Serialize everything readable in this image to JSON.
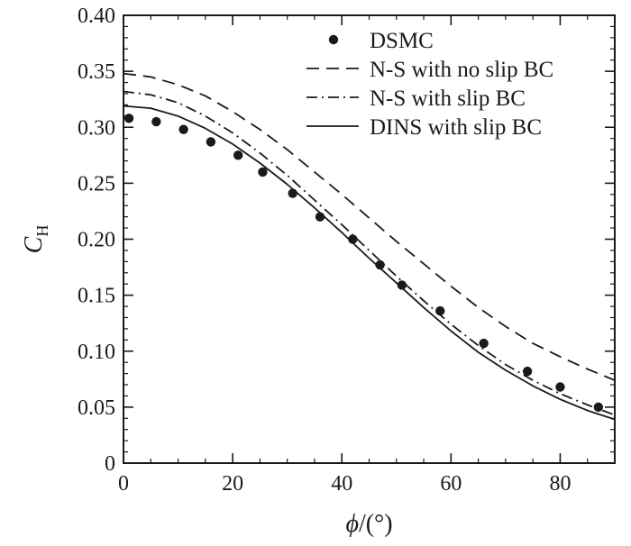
{
  "chart_data": {
    "type": "line",
    "title": "",
    "xlabel": {
      "symbol": "ϕ",
      "unit": "/(°)"
    },
    "ylabel": {
      "symbol": "C",
      "subscript": "H"
    },
    "xlim": [
      0,
      90
    ],
    "ylim": [
      0,
      0.4
    ],
    "xticks": [
      0,
      20,
      40,
      60,
      80
    ],
    "xtick_labels": [
      "0",
      "20",
      "40",
      "60",
      "80"
    ],
    "yticks": [
      0,
      0.05,
      0.1,
      0.15,
      0.2,
      0.25,
      0.3,
      0.35,
      0.4
    ],
    "ytick_labels": [
      "0",
      "0.05",
      "0.10",
      "0.15",
      "0.20",
      "0.25",
      "0.30",
      "0.35",
      "0.40"
    ],
    "grid": false,
    "legend_position": "top-right",
    "series": [
      {
        "name": "DSMC",
        "style": "markers",
        "color": "#1a1a1a",
        "points": [
          [
            1,
            0.308
          ],
          [
            6,
            0.305
          ],
          [
            11,
            0.298
          ],
          [
            16,
            0.287
          ],
          [
            21,
            0.275
          ],
          [
            25.5,
            0.26
          ],
          [
            31,
            0.241
          ],
          [
            36,
            0.22
          ],
          [
            42,
            0.2
          ],
          [
            47,
            0.177
          ],
          [
            51,
            0.159
          ],
          [
            58,
            0.136
          ],
          [
            66,
            0.107
          ],
          [
            74,
            0.082
          ],
          [
            80,
            0.068
          ],
          [
            87,
            0.05
          ]
        ]
      },
      {
        "name": "N-S with no slip BC",
        "style": "dashed",
        "color": "#1a1a1a",
        "points": [
          [
            0,
            0.348
          ],
          [
            5,
            0.345
          ],
          [
            10,
            0.338
          ],
          [
            15,
            0.328
          ],
          [
            20,
            0.314
          ],
          [
            25,
            0.298
          ],
          [
            30,
            0.28
          ],
          [
            35,
            0.26
          ],
          [
            40,
            0.24
          ],
          [
            45,
            0.219
          ],
          [
            50,
            0.198
          ],
          [
            55,
            0.178
          ],
          [
            60,
            0.158
          ],
          [
            65,
            0.139
          ],
          [
            70,
            0.122
          ],
          [
            75,
            0.107
          ],
          [
            80,
            0.095
          ],
          [
            85,
            0.084
          ],
          [
            90,
            0.074
          ]
        ]
      },
      {
        "name": "N-S with slip BC",
        "style": "dashdot",
        "color": "#1a1a1a",
        "points": [
          [
            0,
            0.332
          ],
          [
            5,
            0.329
          ],
          [
            10,
            0.322
          ],
          [
            15,
            0.31
          ],
          [
            20,
            0.295
          ],
          [
            25,
            0.277
          ],
          [
            30,
            0.257
          ],
          [
            35,
            0.235
          ],
          [
            40,
            0.213
          ],
          [
            45,
            0.19
          ],
          [
            50,
            0.167
          ],
          [
            55,
            0.145
          ],
          [
            60,
            0.124
          ],
          [
            65,
            0.105
          ],
          [
            70,
            0.088
          ],
          [
            75,
            0.074
          ],
          [
            80,
            0.062
          ],
          [
            85,
            0.052
          ],
          [
            90,
            0.043
          ]
        ]
      },
      {
        "name": "DINS with slip BC",
        "style": "solid",
        "color": "#1a1a1a",
        "points": [
          [
            0,
            0.319
          ],
          [
            5,
            0.317
          ],
          [
            10,
            0.31
          ],
          [
            15,
            0.299
          ],
          [
            20,
            0.285
          ],
          [
            25,
            0.268
          ],
          [
            30,
            0.249
          ],
          [
            35,
            0.228
          ],
          [
            40,
            0.206
          ],
          [
            45,
            0.183
          ],
          [
            50,
            0.161
          ],
          [
            55,
            0.139
          ],
          [
            60,
            0.118
          ],
          [
            65,
            0.099
          ],
          [
            70,
            0.083
          ],
          [
            75,
            0.069
          ],
          [
            80,
            0.057
          ],
          [
            85,
            0.047
          ],
          [
            90,
            0.039
          ]
        ]
      }
    ]
  }
}
